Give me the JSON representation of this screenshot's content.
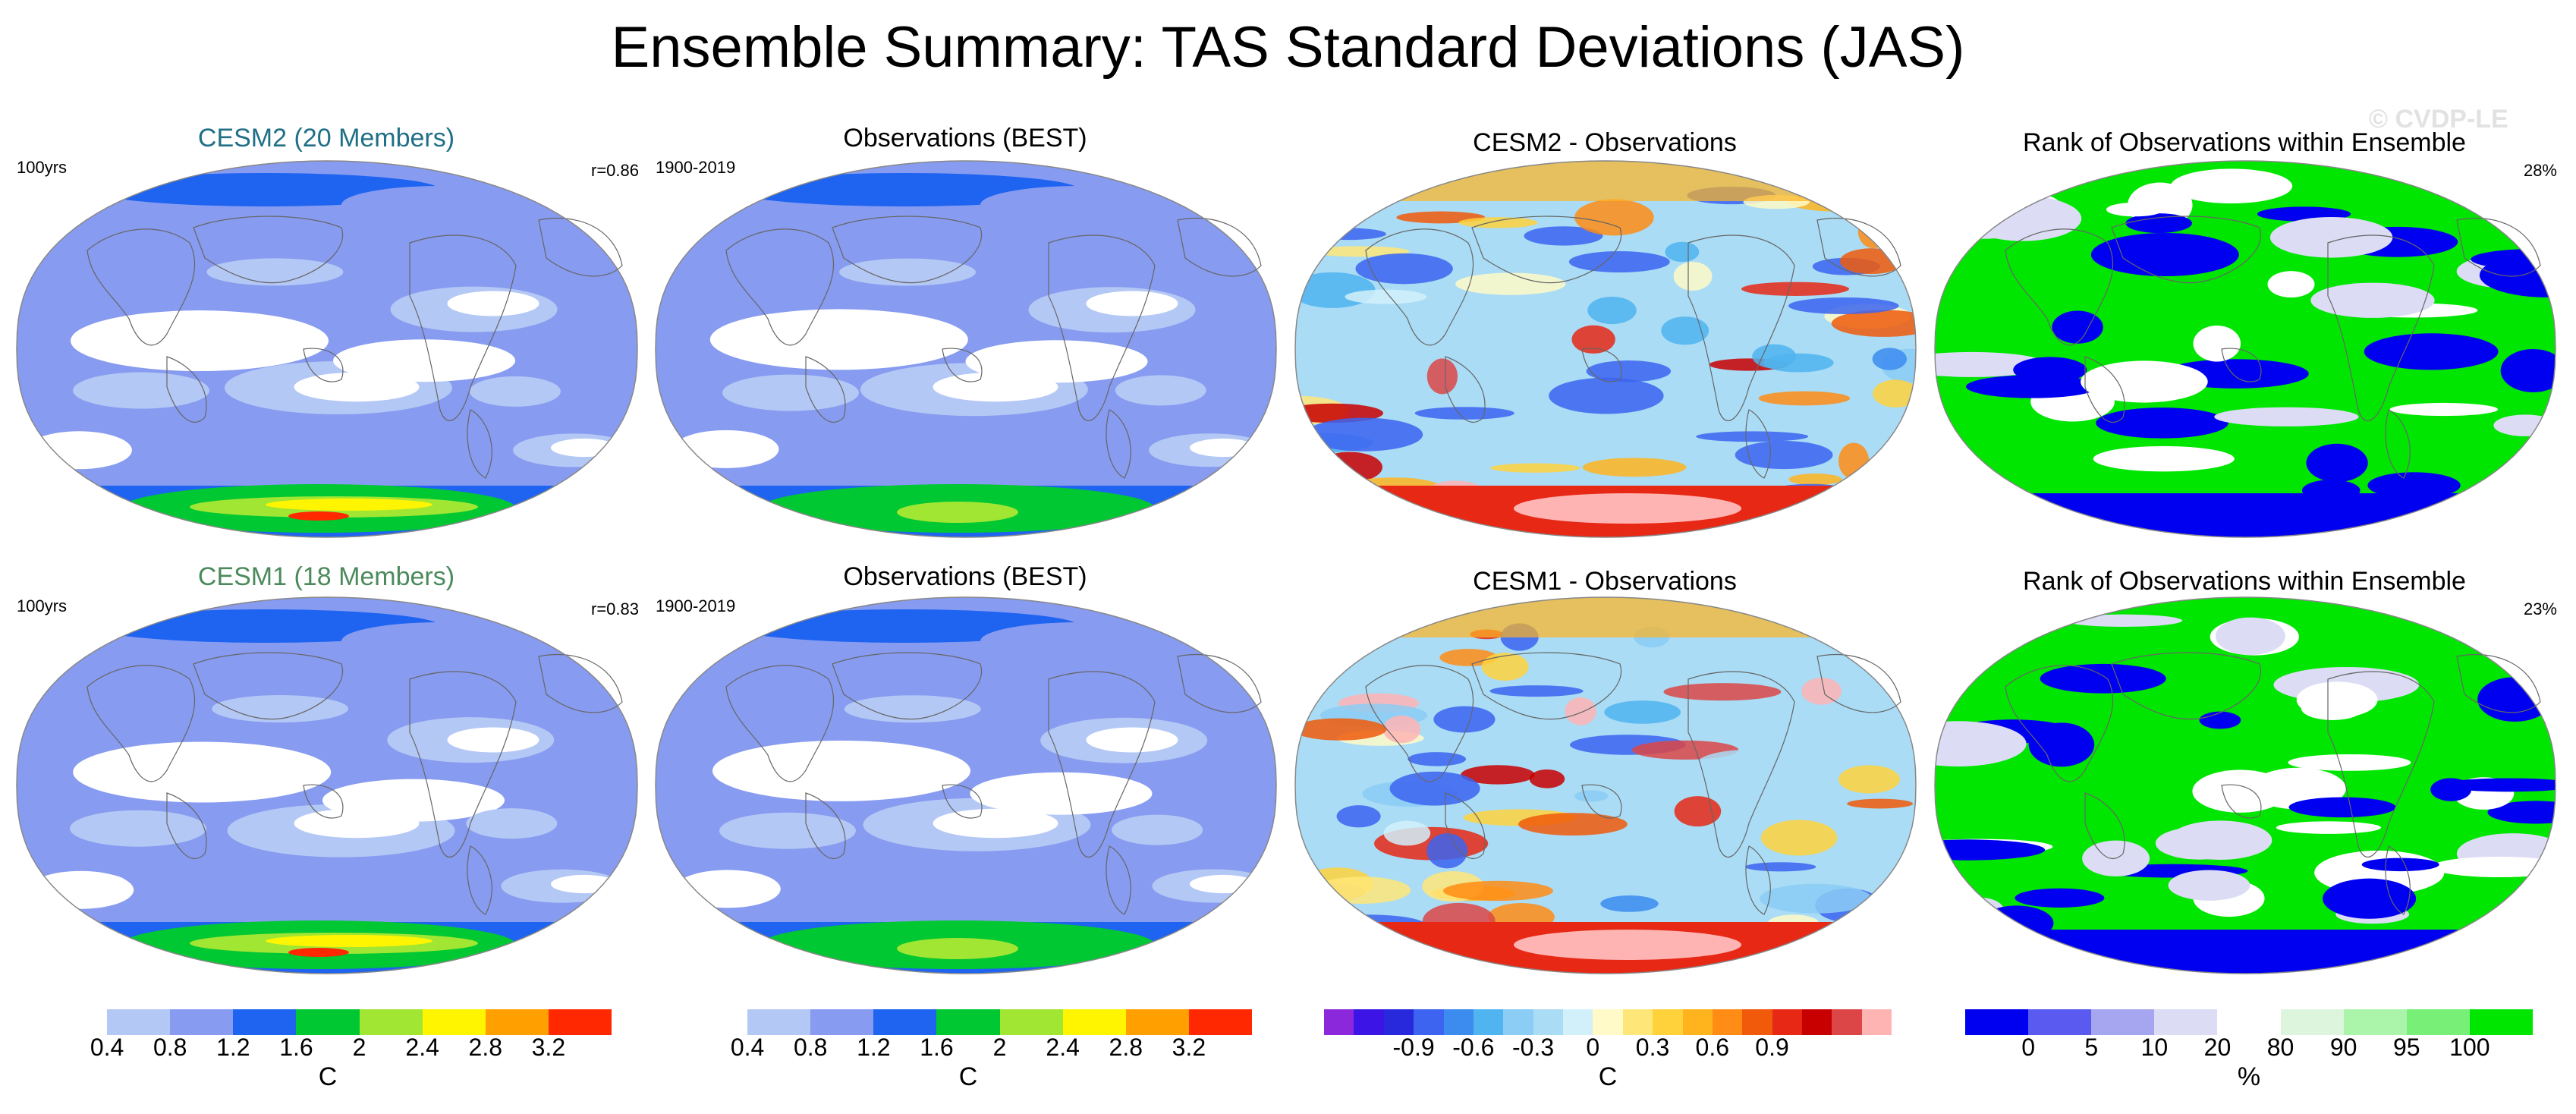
{
  "title": "Ensemble Summary: TAS Standard Deviations (JAS)",
  "watermark": "© CVDP-LE",
  "chart_data": {
    "type": "heatmap",
    "title": "Ensemble Summary: TAS Standard Deviations (JAS)",
    "projection": "Robinson global maps (2 rows × 4 panels)",
    "rows": [
      {
        "model": "CESM2",
        "panels": [
          {
            "title": "CESM2 (20 Members)",
            "left_note": "100yrs",
            "right_note": "r=0.86",
            "field": "ensemble-mean TAS std dev (C)",
            "colorscale": "sd"
          },
          {
            "title": "Observations (BEST)",
            "left_note": "1900-2019",
            "right_note": "",
            "field": "observed TAS std dev (C)",
            "colorscale": "sd"
          },
          {
            "title": "CESM2 - Observations",
            "left_note": "",
            "right_note": "",
            "field": "difference (C)",
            "colorscale": "diff"
          },
          {
            "title": "Rank of Observations within Ensemble",
            "left_note": "",
            "right_note": "28%",
            "field": "rank (%)",
            "colorscale": "rank"
          }
        ]
      },
      {
        "model": "CESM1",
        "panels": [
          {
            "title": "CESM1 (18 Members)",
            "left_note": "100yrs",
            "right_note": "r=0.83",
            "field": "ensemble-mean TAS std dev (C)",
            "colorscale": "sd"
          },
          {
            "title": "Observations (BEST)",
            "left_note": "1900-2019",
            "right_note": "",
            "field": "observed TAS std dev (C)",
            "colorscale": "sd"
          },
          {
            "title": "CESM1 - Observations",
            "left_note": "",
            "right_note": "",
            "field": "difference (C)",
            "colorscale": "diff"
          },
          {
            "title": "Rank of Observations within Ensemble",
            "left_note": "",
            "right_note": "23%",
            "field": "rank (%)",
            "colorscale": "rank"
          }
        ]
      }
    ],
    "colorbars": [
      {
        "id": "sd",
        "label": "C",
        "ticks": [
          "0.4",
          "0.8",
          "1.2",
          "1.6",
          "2",
          "2.4",
          "2.8",
          "3.2"
        ],
        "colors": [
          "#ffffff",
          "#b4c8f5",
          "#879bf0",
          "#1e64f0",
          "#00c832",
          "#a0e632",
          "#fff500",
          "#ffa000",
          "#ff2800"
        ]
      },
      {
        "id": "sd_obs",
        "label": "C",
        "ticks": [
          "0.4",
          "0.8",
          "1.2",
          "1.6",
          "2",
          "2.4",
          "2.8",
          "3.2"
        ],
        "colors": [
          "#ffffff",
          "#b4c8f5",
          "#879bf0",
          "#1e64f0",
          "#00c832",
          "#a0e632",
          "#fff500",
          "#ffa000",
          "#ff2800"
        ]
      },
      {
        "id": "diff",
        "label": "C",
        "ticks": [
          "-0.9",
          "-0.6",
          "-0.3",
          "0",
          "0.3",
          "0.6",
          "0.9"
        ],
        "colors": [
          "#8c28dc",
          "#3c14e6",
          "#2828dc",
          "#3c64f0",
          "#3c8cf0",
          "#50b4f0",
          "#8ccdf5",
          "#aadcf5",
          "#d2f0fa",
          "#fffac8",
          "#ffe678",
          "#ffd23c",
          "#ffb41e",
          "#ff8c14",
          "#f05a0a",
          "#e62814",
          "#c80000",
          "#dc4646",
          "#ffb4b4"
        ]
      },
      {
        "id": "rank",
        "label": "%",
        "ticks": [
          "0",
          "5",
          "10",
          "20",
          "80",
          "90",
          "95",
          "100"
        ],
        "colors": [
          "#0000f0",
          "#5a5af0",
          "#a5a5f0",
          "#dcdcf5",
          "#ffffff",
          "#dcf5dc",
          "#aaf5aa",
          "#78f078",
          "#00e600"
        ]
      }
    ]
  }
}
